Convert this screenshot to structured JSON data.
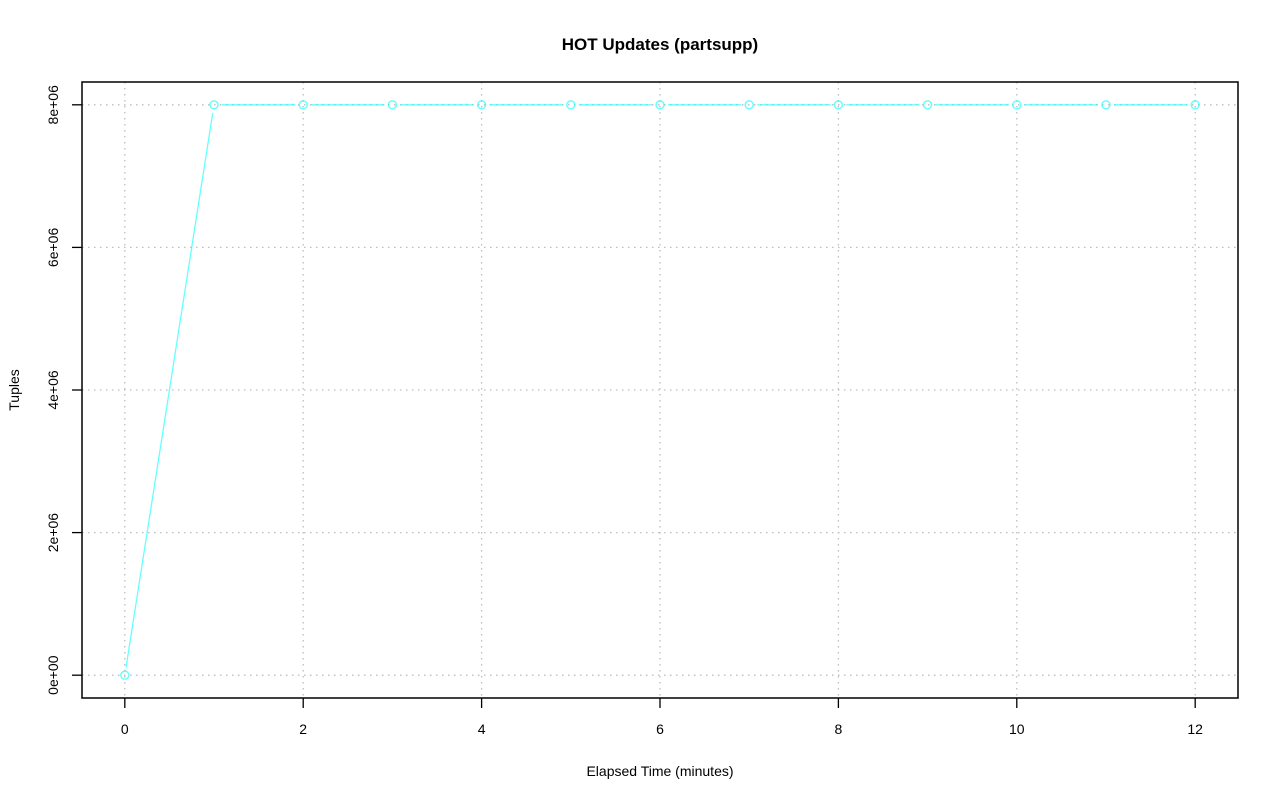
{
  "chart_data": {
    "type": "line",
    "title": "HOT Updates (partsupp)",
    "xlabel": "Elapsed Time (minutes)",
    "ylabel": "Tuples",
    "x": [
      0,
      1,
      2,
      3,
      4,
      5,
      6,
      7,
      8,
      9,
      10,
      11,
      12
    ],
    "series": [
      {
        "values": [
          0,
          8000000,
          8000000,
          8000000,
          8000000,
          8000000,
          8000000,
          8000000,
          8000000,
          8000000,
          8000000,
          8000000,
          8000000
        ],
        "color": "#00FFFF",
        "marker": "open-circle"
      }
    ],
    "xticks": [
      0,
      2,
      4,
      6,
      8,
      10,
      12
    ],
    "xtick_labels": [
      "0",
      "2",
      "4",
      "6",
      "8",
      "10",
      "12"
    ],
    "yticks": [
      0,
      2000000,
      4000000,
      6000000,
      8000000
    ],
    "ytick_labels": [
      "0e+00",
      "2e+06",
      "4e+06",
      "6e+06",
      "8e+06"
    ],
    "xlim": [
      -0.48,
      12.48
    ],
    "ylim": [
      -320000,
      8320000
    ],
    "grid": true,
    "grid_color": "#BEBEBE"
  }
}
